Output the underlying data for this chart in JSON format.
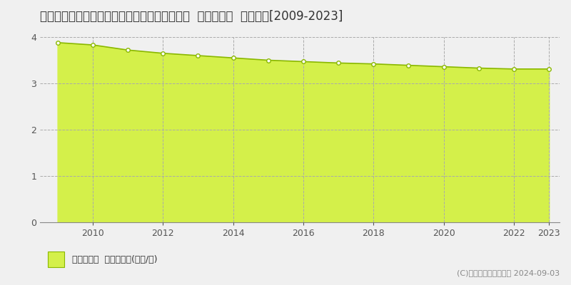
{
  "title": "福島県石川郡平田村大字上蓬田字新屋敷１０番  基準地価格  地価推移[2009-2023]",
  "years": [
    2009,
    2010,
    2011,
    2012,
    2013,
    2014,
    2015,
    2016,
    2017,
    2018,
    2019,
    2020,
    2021,
    2022,
    2023
  ],
  "values": [
    3.88,
    3.83,
    3.72,
    3.65,
    3.6,
    3.55,
    3.5,
    3.47,
    3.44,
    3.42,
    3.39,
    3.36,
    3.33,
    3.31,
    3.31
  ],
  "line_color": "#8ab800",
  "fill_color": "#d4f04a",
  "fill_alpha": 1.0,
  "marker_color": "white",
  "marker_edge_color": "#8ab800",
  "background_color": "#f0f0f0",
  "plot_bg_color": "#f0f0f0",
  "grid_color": "#aaaaaa",
  "ylim": [
    0,
    4
  ],
  "yticks": [
    0,
    1,
    2,
    3,
    4
  ],
  "xticks": [
    2010,
    2012,
    2014,
    2016,
    2018,
    2020,
    2022,
    2023
  ],
  "legend_label": "基準地価格  平均坪単価(万円/坪)",
  "copyright_text": "(C)土地価格ドットコム 2024-09-03",
  "title_fontsize": 12,
  "tick_fontsize": 9,
  "legend_fontsize": 9,
  "copyright_fontsize": 8
}
